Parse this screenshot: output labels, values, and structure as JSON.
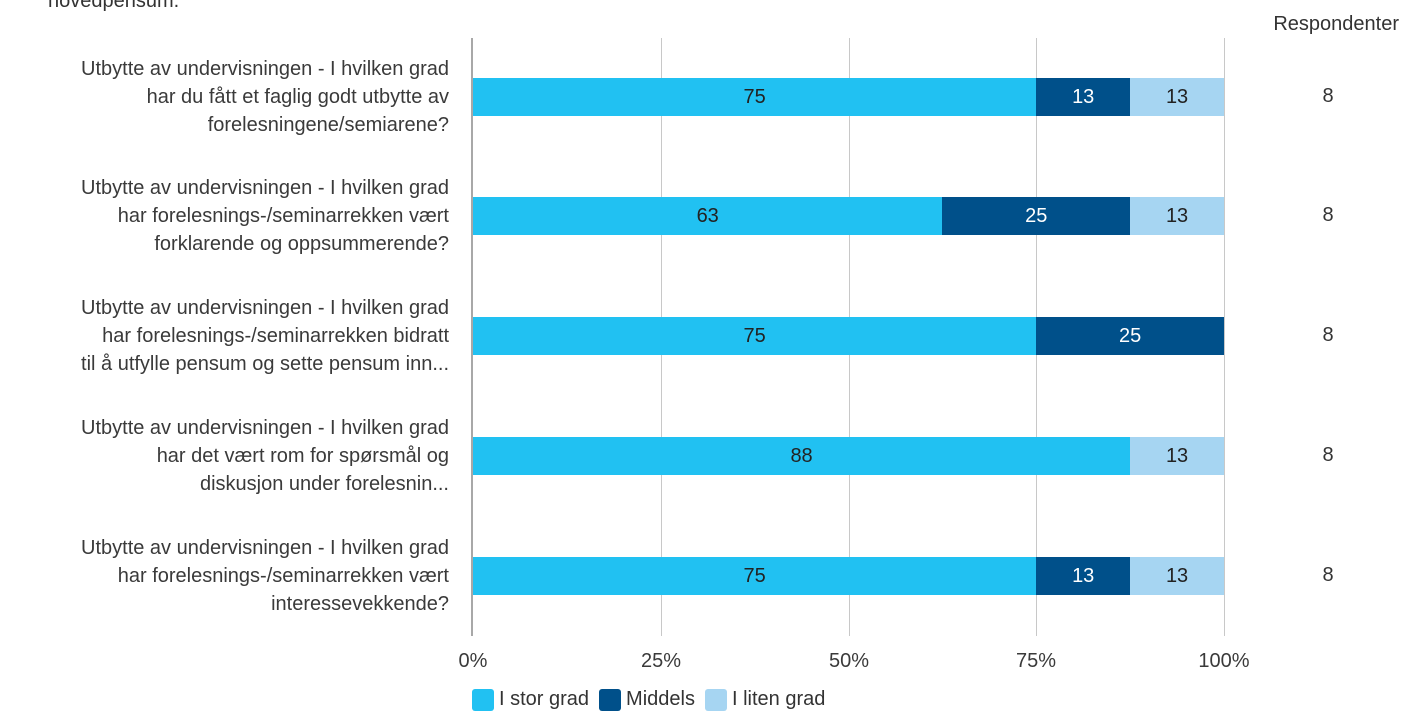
{
  "page": {
    "clipped_title": "hovedpensum.",
    "respondents_header": "Respondenter"
  },
  "colors": {
    "I stor grad": "#21c1f2",
    "Middels": "#00508a",
    "I liten grad": "#a6d5f2",
    "text_dark": "#ffffff",
    "text_light": "#222222"
  },
  "chart_data": {
    "type": "bar",
    "orientation": "horizontal",
    "stacked": true,
    "title": "",
    "xlabel": "",
    "ylabel": "",
    "xlim": [
      0,
      100
    ],
    "x_ticks": [
      "0%",
      "25%",
      "50%",
      "75%",
      "100%"
    ],
    "grid": true,
    "legend_position": "bottom",
    "categories": [
      [
        "Utbytte av undervisningen - I hvilken grad",
        "har du fått et faglig godt utbytte av",
        "forelesningene/semiarene?"
      ],
      [
        "Utbytte av undervisningen - I hvilken grad",
        "har forelesnings-/seminarrekken vært",
        "forklarende og oppsummerende?"
      ],
      [
        "Utbytte av undervisningen - I hvilken grad",
        "har forelesnings-/seminarrekken bidratt",
        "til å utfylle pensum og sette pensum inn..."
      ],
      [
        "Utbytte av undervisningen - I hvilken grad",
        "har det vært rom for spørsmål og",
        "diskusjon under forelesnin..."
      ],
      [
        "Utbytte av undervisningen - I hvilken grad",
        "har forelesnings-/seminarrekken vært",
        "interessevekkende?"
      ]
    ],
    "series": [
      {
        "name": "I stor grad",
        "values": [
          75,
          63,
          75,
          88,
          75
        ],
        "fractions": [
          0.75,
          0.625,
          0.75,
          0.875,
          0.75
        ]
      },
      {
        "name": "Middels",
        "values": [
          13,
          25,
          25,
          0,
          13
        ],
        "fractions": [
          0.125,
          0.25,
          0.25,
          0,
          0.125
        ]
      },
      {
        "name": "I liten grad",
        "values": [
          13,
          13,
          0,
          13,
          13
        ],
        "fractions": [
          0.125,
          0.125,
          0,
          0.125,
          0.125
        ]
      }
    ],
    "respondents": [
      8,
      8,
      8,
      8,
      8
    ]
  }
}
